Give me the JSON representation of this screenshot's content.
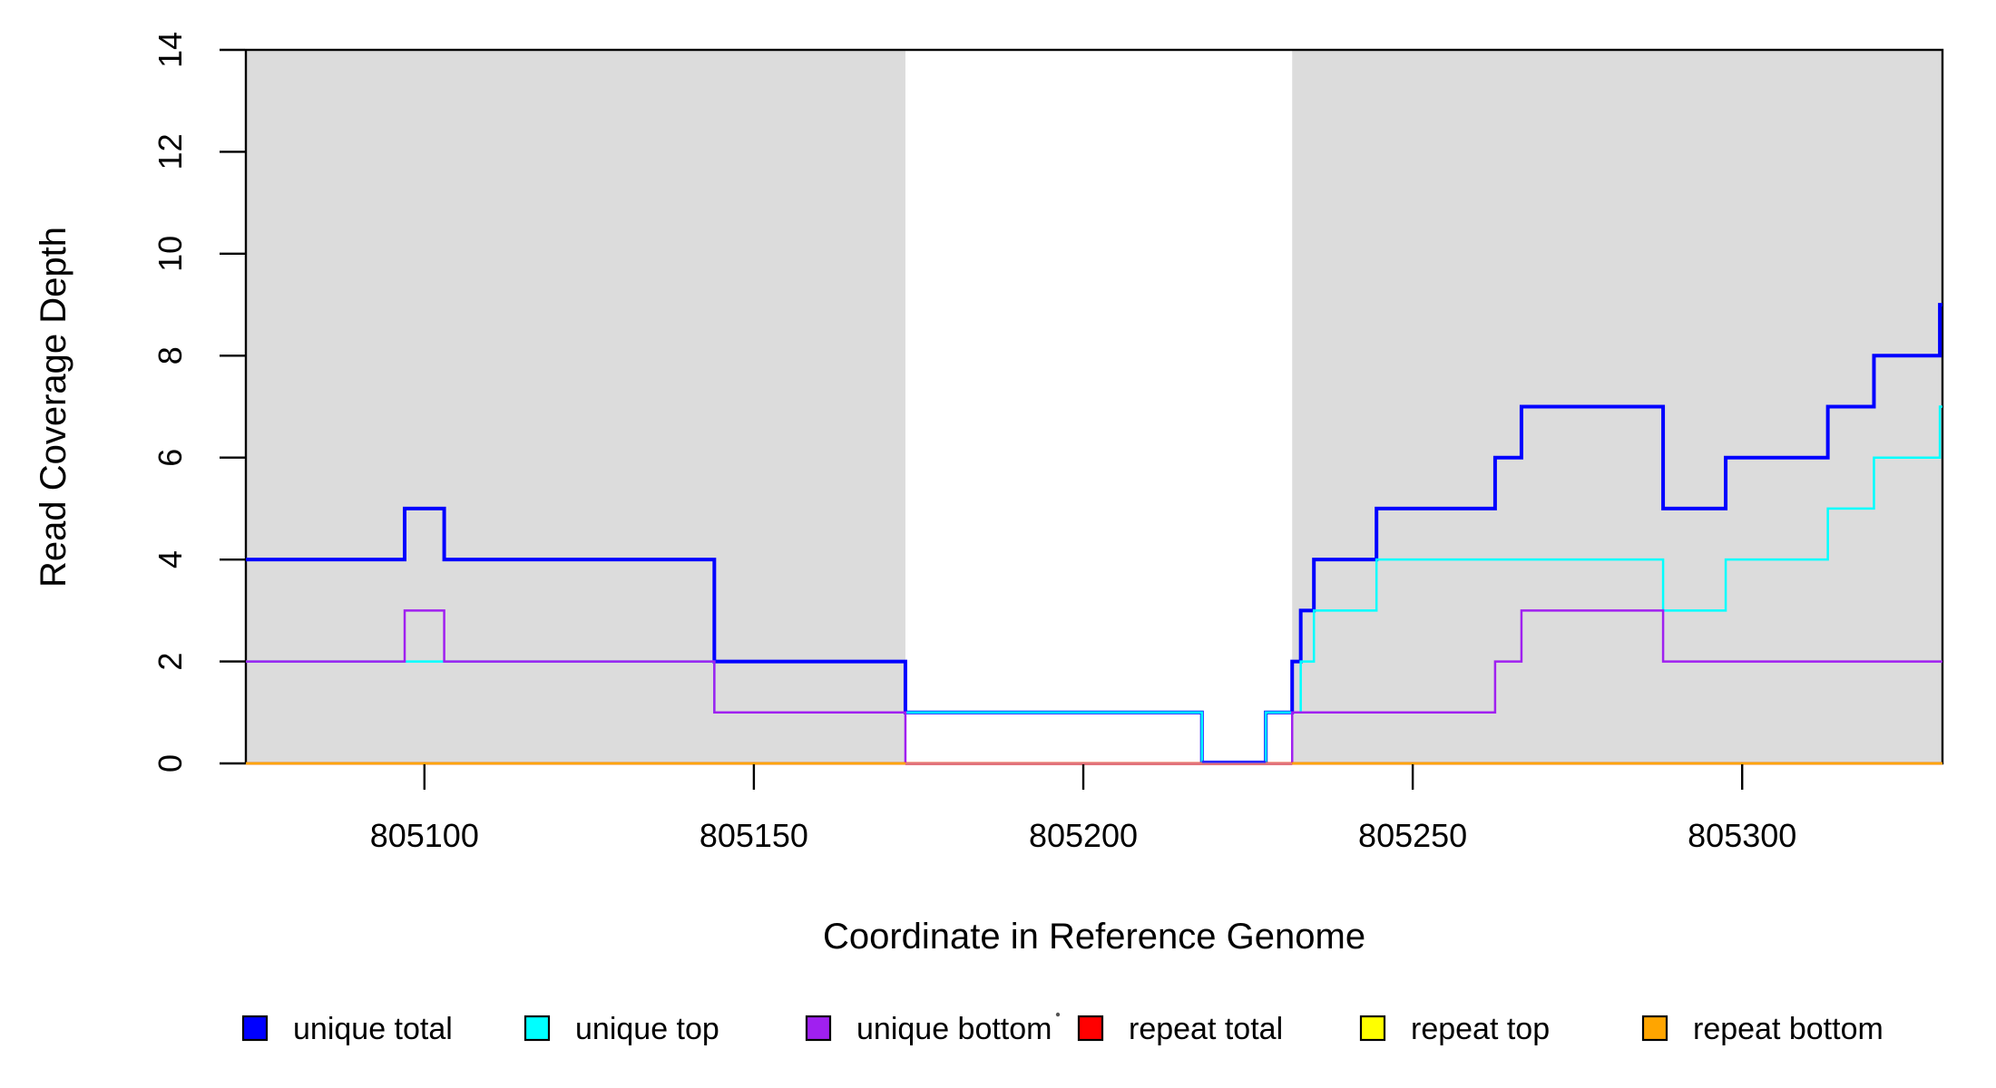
{
  "figure_title": "",
  "chart_data": {
    "type": "line",
    "subtype": "step-coverage-plot",
    "title": "",
    "xlabel": "Coordinate in Reference Genome",
    "ylabel": "Read Coverage Depth",
    "x_domain": [
      805072.9,
      805330.4
    ],
    "y_domain": [
      0,
      14
    ],
    "x_ticks": [
      805100,
      805150,
      805200,
      805250,
      805300
    ],
    "x_tick_labels": [
      "805100",
      "805150",
      "805200",
      "805250",
      "805300"
    ],
    "y_ticks": [
      0,
      2,
      4,
      6,
      8,
      10,
      12,
      14
    ],
    "y_tick_labels": [
      "0",
      "2",
      "4",
      "6",
      "8",
      "10",
      "12",
      "14"
    ],
    "grid": false,
    "legend_position": "bottom",
    "shade_color": "#dcdcdc",
    "axis_color": "#000000",
    "shaded_regions": [
      {
        "from": 805072.9,
        "to": 805173.0
      },
      {
        "from": 805231.7,
        "to": 805330.4
      }
    ],
    "series": [
      {
        "name": "unique total",
        "color": "#0000ff",
        "line_width": 4,
        "points": [
          [
            805072.9,
            4
          ],
          [
            805097,
            5
          ],
          [
            805103,
            4
          ],
          [
            805144,
            2
          ],
          [
            805173,
            1
          ],
          [
            805218,
            0
          ],
          [
            805227.7,
            1
          ],
          [
            805231.7,
            2
          ],
          [
            805233,
            3
          ],
          [
            805235,
            4
          ],
          [
            805244.5,
            5
          ],
          [
            805262.5,
            6
          ],
          [
            805266.5,
            7
          ],
          [
            805288,
            5
          ],
          [
            805297.5,
            6
          ],
          [
            805313,
            7
          ],
          [
            805320,
            8
          ],
          [
            805330,
            9
          ]
        ]
      },
      {
        "name": "unique top",
        "color": "#00ffff",
        "line_width": 2.5,
        "points": [
          [
            805072.9,
            2
          ],
          [
            805144,
            1
          ],
          [
            805218,
            0
          ],
          [
            805227.7,
            1
          ],
          [
            805233,
            2
          ],
          [
            805235,
            3
          ],
          [
            805244.5,
            4
          ],
          [
            805288,
            3
          ],
          [
            805297.5,
            4
          ],
          [
            805313,
            5
          ],
          [
            805320,
            6
          ],
          [
            805330,
            7
          ]
        ]
      },
      {
        "name": "unique bottom",
        "color": "#a020f0",
        "line_width": 2.5,
        "points": [
          [
            805072.9,
            2
          ],
          [
            805097,
            3
          ],
          [
            805103,
            2
          ],
          [
            805144,
            1
          ],
          [
            805173,
            0
          ],
          [
            805231.7,
            1
          ],
          [
            805262.5,
            2
          ],
          [
            805266.5,
            3
          ],
          [
            805288,
            2
          ]
        ]
      },
      {
        "name": "repeat total",
        "color": "#ff0000",
        "line_width": 2.5,
        "points": [
          [
            805072.9,
            0
          ]
        ]
      },
      {
        "name": "repeat top",
        "color": "#ffff00",
        "line_width": 2.5,
        "points": [
          [
            805072.9,
            0
          ]
        ]
      },
      {
        "name": "repeat bottom",
        "color": "#ffa500",
        "line_width": 2.5,
        "points": [
          [
            805072.9,
            0
          ]
        ]
      }
    ],
    "zero_overlays": [
      {
        "from": 805173.0,
        "to": 805231.7,
        "color": "#e2737b",
        "width": 3,
        "dy": 0.5
      },
      {
        "from": 805218.0,
        "to": 805227.7,
        "color": "#2a2aff",
        "width": 2.6,
        "dy": -1.8
      }
    ],
    "legend": [
      {
        "label": "unique total",
        "color": "#0000ff"
      },
      {
        "label": "unique top",
        "color": "#00ffff"
      },
      {
        "label": "unique bottom",
        "color": "#a020f0"
      },
      {
        "label": "repeat total",
        "color": "#ff0000"
      },
      {
        "label": "repeat top",
        "color": "#ffff00"
      },
      {
        "label": "repeat bottom",
        "color": "#ffa500"
      }
    ]
  }
}
